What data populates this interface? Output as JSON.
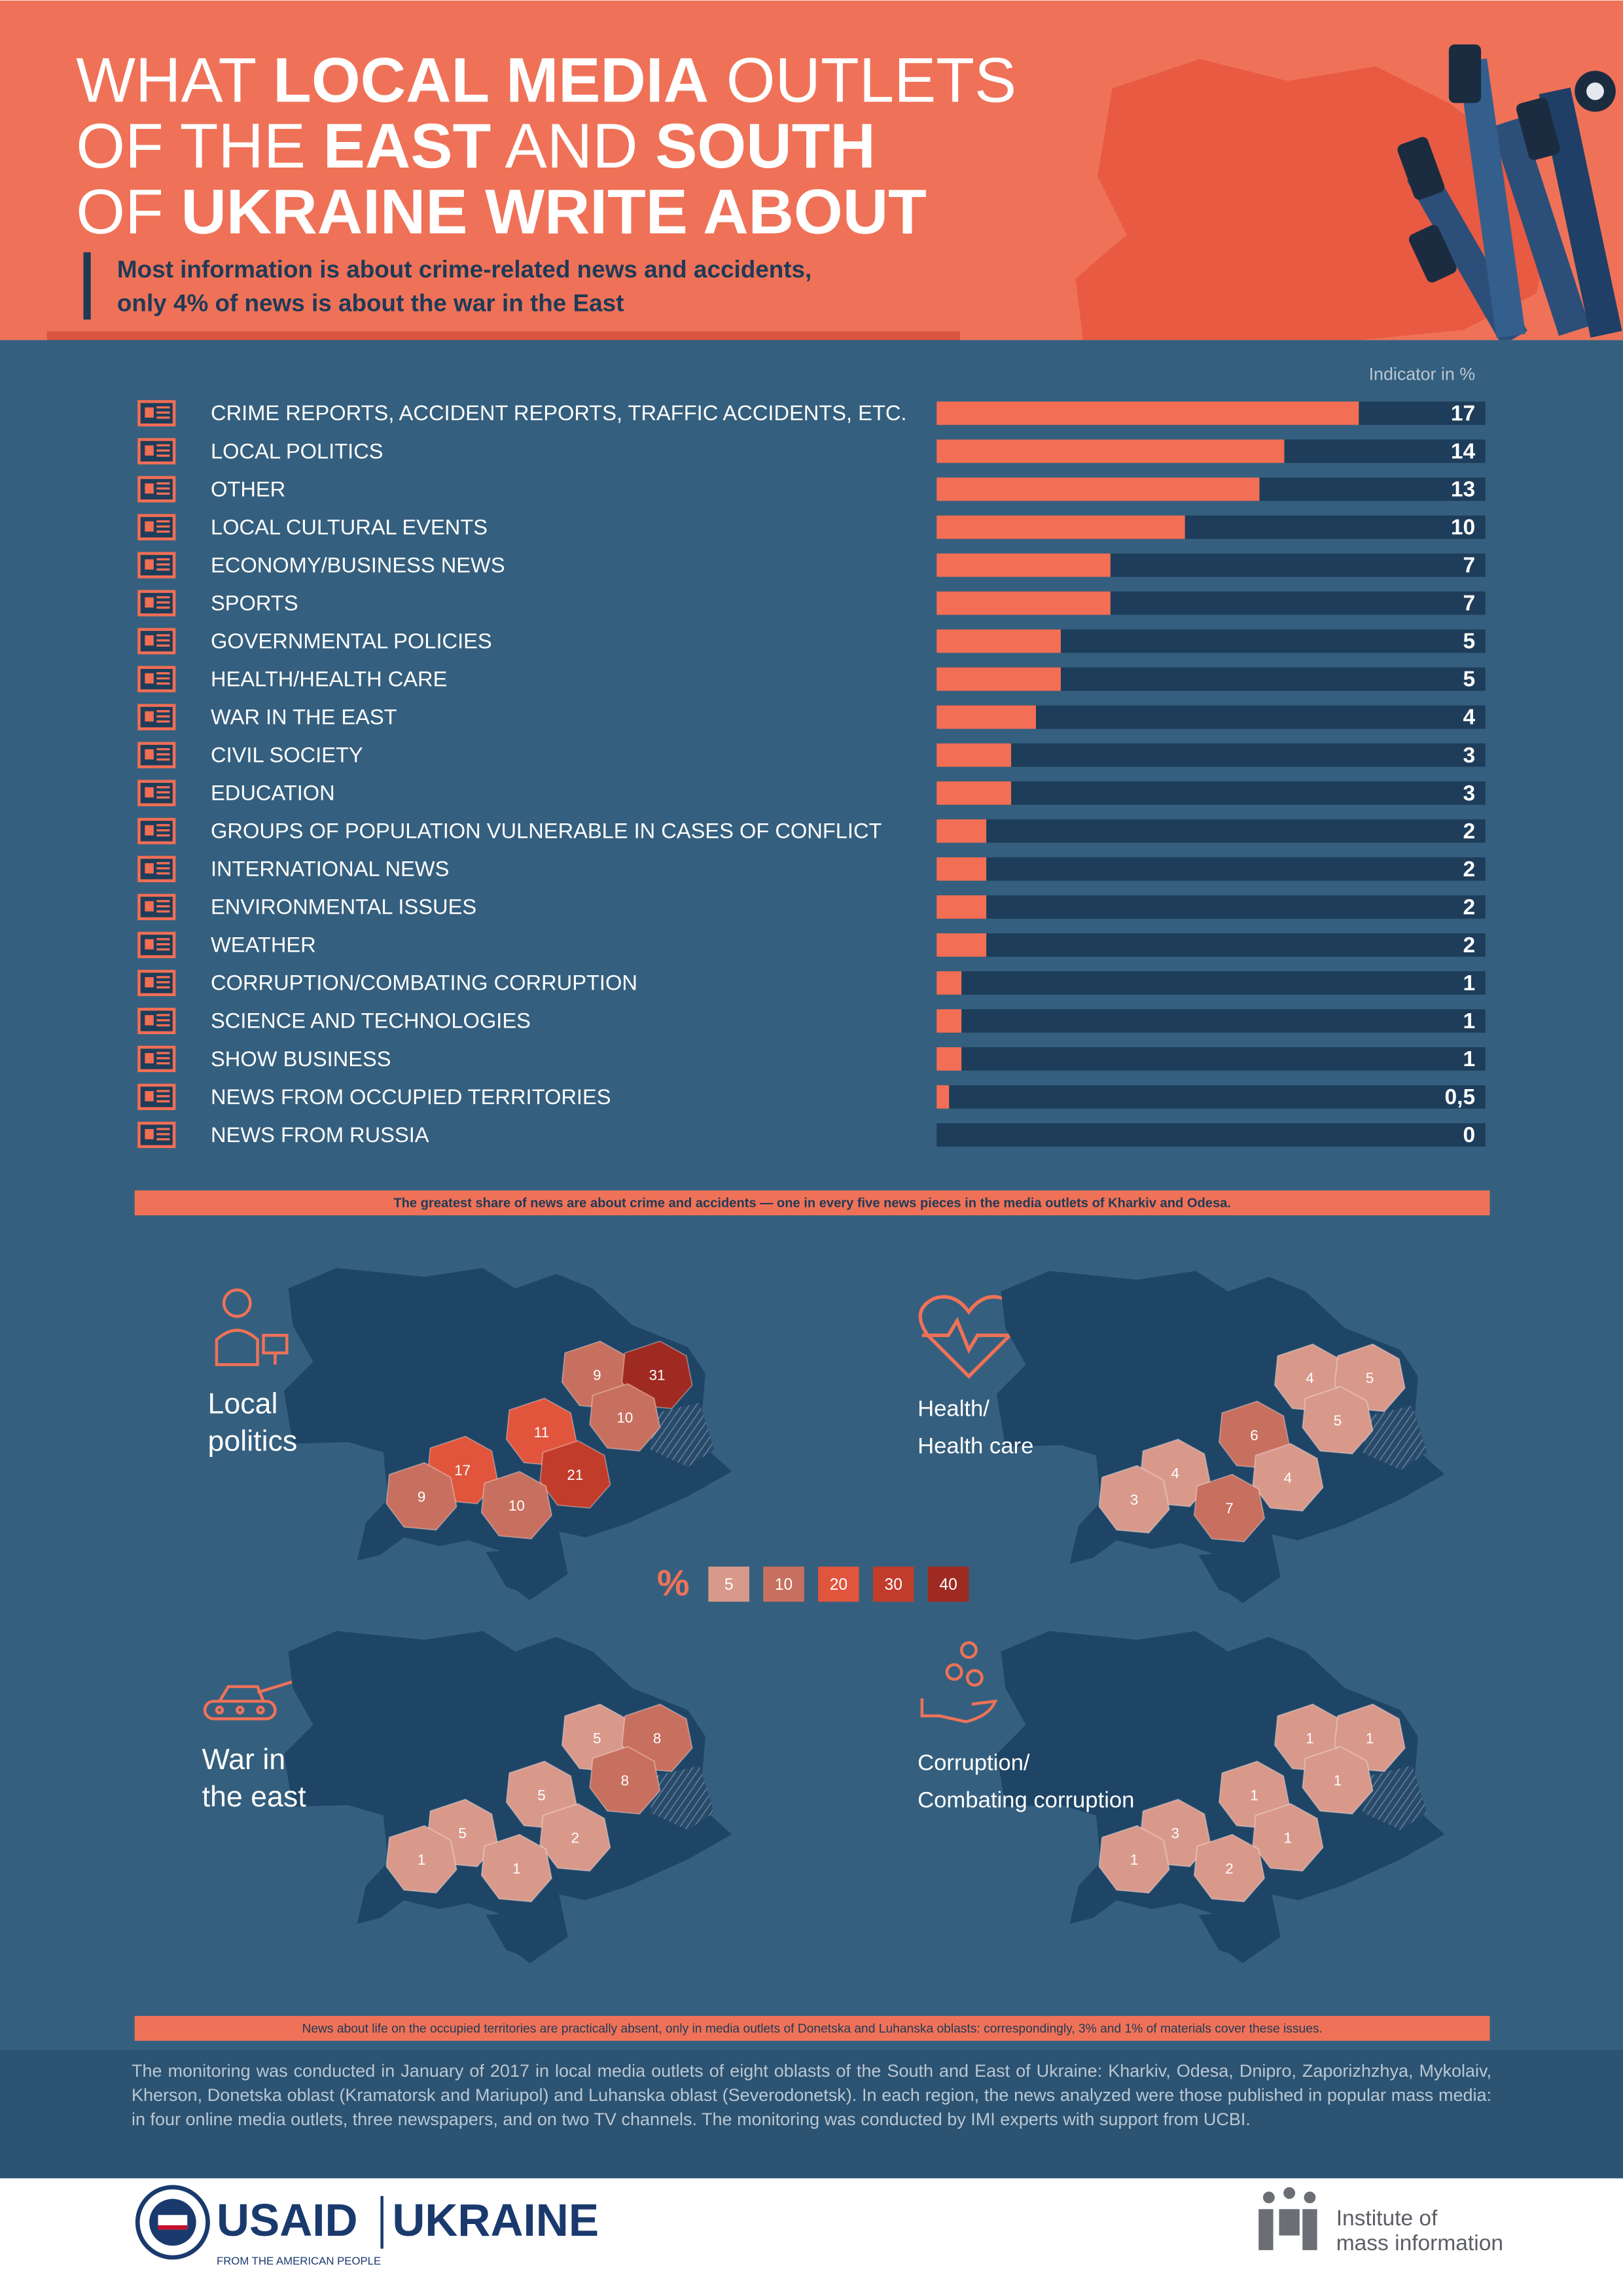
{
  "header": {
    "title_lines": [
      [
        "WHAT ",
        "LOCAL MEDIA",
        " OUTLETS"
      ],
      [
        "OF THE ",
        "EAST",
        " AND ",
        "SOUTH"
      ],
      [
        "OF ",
        "UKRAINE WRITE ABOUT"
      ]
    ],
    "subtitle_lines": [
      "Most information is about crime-related news and accidents,",
      "only 4% of news is about the war in the East"
    ]
  },
  "chart_data": {
    "type": "bar",
    "axis_label": "Indicator in %",
    "categories": [
      "CRIME REPORTS, ACCIDENT REPORTS, TRAFFIC ACCIDENTS, ETC.",
      "LOCAL POLITICS",
      "OTHER",
      "LOCAL CULTURAL EVENTS",
      "ECONOMY/BUSINESS NEWS",
      "SPORTS",
      "GOVERNMENTAL POLICIES",
      "HEALTH/HEALTH CARE",
      "WAR IN THE EAST",
      "CIVIL SOCIETY",
      "EDUCATION",
      "GROUPS OF POPULATION VULNERABLE IN CASES OF CONFLICT",
      "INTERNATIONAL NEWS",
      "ENVIRONMENTAL ISSUES",
      "WEATHER",
      "CORRUPTION/COMBATING CORRUPTION",
      "SCIENCE AND TECHNOLOGIES",
      "SHOW BUSINESS",
      "NEWS FROM OCCUPIED TERRITORIES",
      "NEWS FROM RUSSIA"
    ],
    "values": [
      17,
      14,
      13,
      10,
      7,
      7,
      5,
      5,
      4,
      3,
      3,
      2,
      2,
      2,
      2,
      1,
      1,
      1,
      0.5,
      0
    ],
    "value_labels": [
      "17",
      "14",
      "13",
      "10",
      "7",
      "7",
      "5",
      "5",
      "4",
      "3",
      "3",
      "2",
      "2",
      "2",
      "2",
      "1",
      "1",
      "1",
      "0,5",
      "0"
    ],
    "xlim": [
      0,
      22.1
    ],
    "color": "#f26e55",
    "track_color": "#1e3d5a"
  },
  "notes": [
    "The greatest share of news are about crime and accidents — one in every five news pieces in the media outlets of Kharkiv and Odesa.",
    "News about life on the occupied territories are practically absent, only in media outlets of Donetska and Luhanska oblasts: correspondingly, 3% and 1% of materials cover these issues."
  ],
  "maps": {
    "legend": {
      "symbol": "%",
      "values": [
        5,
        10,
        20,
        30,
        40
      ],
      "colors": [
        "#d8998b",
        "#c8705f",
        "#e0553c",
        "#c23c2b",
        "#9e2a22"
      ]
    },
    "panels": [
      {
        "title_lines": [
          "Local",
          "politics"
        ],
        "values": [
          9,
          31,
          10,
          11,
          17,
          21,
          9,
          10
        ]
      },
      {
        "title_lines": [
          "Health/",
          "Health care"
        ],
        "values": [
          4,
          5,
          5,
          6,
          4,
          4,
          3,
          7
        ]
      },
      {
        "title_lines": [
          "War in",
          "the east"
        ],
        "values": [
          5,
          8,
          8,
          5,
          5,
          2,
          1,
          1
        ]
      },
      {
        "title_lines": [
          "Corruption/",
          "Combating corruption"
        ],
        "values": [
          1,
          1,
          1,
          1,
          3,
          1,
          1,
          2
        ]
      }
    ]
  },
  "footer": {
    "text": "The monitoring was conducted in January of 2017 in local media outlets of eight oblasts of the South and East of Ukraine: Kharkiv, Odesa, Dnipro, Zaporizhzhya, Mykolaiv, Kherson, Donetska oblast (Kramatorsk and Mariupol) and Luhanska oblast (Severodonetsk). In each region, the news analyzed were those published in popular mass media: in four online media outlets, three newspapers, and on two TV channels. The monitoring was conducted by IMI experts with support from UCBI.",
    "usaid": "USAID",
    "usaid_tagline": "FROM THE AMERICAN PEOPLE",
    "country": "UKRAINE",
    "imi_lines": [
      "Institute of",
      "mass information"
    ]
  }
}
